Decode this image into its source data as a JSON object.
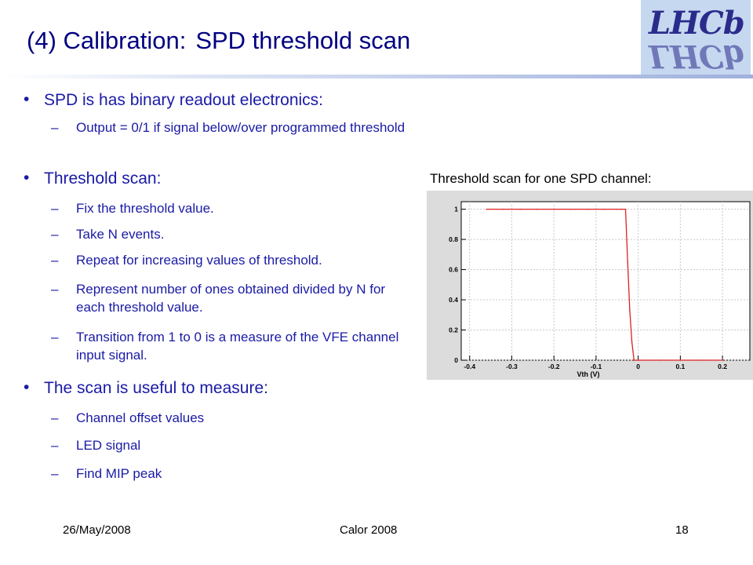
{
  "slide": {
    "title_part1": "(4) Calibration:",
    "title_part2": "SPD threshold scan",
    "logo_text": "LHCb"
  },
  "bullets": [
    {
      "text": "SPD is has binary readout electronics:",
      "subs": [
        "Output = 0/1 if signal below/over programmed threshold"
      ]
    },
    {
      "text": "Threshold scan:",
      "subs": [
        "Fix the threshold value.",
        "Take N events.",
        "Repeat for increasing values of threshold.",
        "Represent number of ones obtained divided by N for each threshold value.",
        "Transition from 1 to 0 is a measure of the VFE channel input signal."
      ]
    },
    {
      "text": "The scan is useful to measure:",
      "subs": [
        "Channel offset values",
        "LED signal",
        "Find MIP peak"
      ]
    }
  ],
  "plot_caption": "Threshold scan for one SPD channel:",
  "chart_data": {
    "type": "line",
    "xlabel": "Vth (V)",
    "ylabel": "",
    "xlim": [
      -0.42,
      0.265
    ],
    "ylim": [
      0,
      1.05
    ],
    "xticks": [
      -0.4,
      -0.3,
      -0.2,
      -0.1,
      0,
      0.1,
      0.2
    ],
    "xtick_labels": [
      "-0.4",
      "-0.3",
      "-0.2",
      "-0.1",
      "0",
      "0.1",
      "0.2"
    ],
    "yticks": [
      0,
      0.2,
      0.4,
      0.6,
      0.8,
      1
    ],
    "ytick_labels": [
      "0",
      "0.2",
      "0.4",
      "0.6",
      "0.8",
      "1"
    ],
    "grid": true,
    "series": [
      {
        "x": [
          -0.36,
          -0.32,
          -0.28,
          -0.24,
          -0.2,
          -0.16,
          -0.12,
          -0.08,
          -0.05,
          -0.04,
          -0.03,
          -0.025,
          -0.02,
          -0.015,
          -0.01,
          0.0,
          0.05,
          0.1,
          0.15,
          0.2
        ],
        "y": [
          1,
          1,
          1,
          1,
          1,
          1,
          1,
          1,
          1,
          1,
          1,
          0.65,
          0.33,
          0.12,
          0,
          0,
          0,
          0,
          0,
          0
        ],
        "color": "#e02020"
      }
    ]
  },
  "footer": {
    "date": "26/May/2008",
    "event": "Calor 2008",
    "page": "18"
  }
}
